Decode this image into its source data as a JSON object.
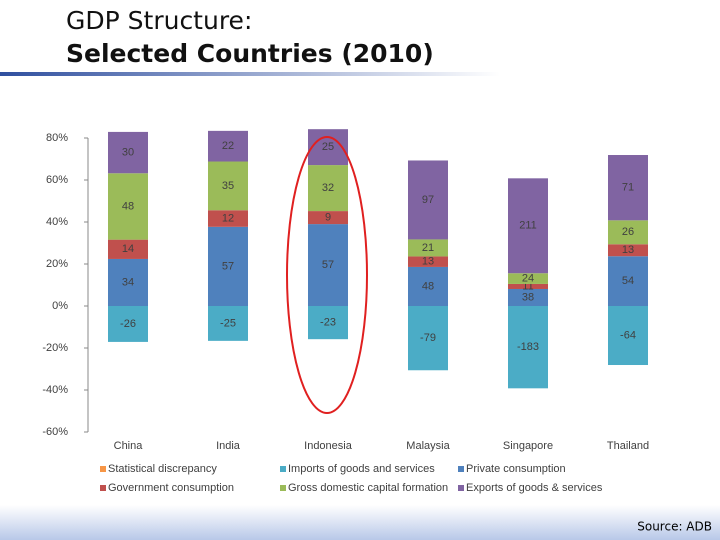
{
  "chart_data": {
    "type": "stacked_bar",
    "title": "GDP Structure:",
    "subtitle": "Selected Countries (2010)",
    "source": "Source: ADB",
    "categories": [
      "China",
      "India",
      "Indonesia",
      "Malaysia",
      "Singapore",
      "Thailand"
    ],
    "ylim": [
      -60,
      80
    ],
    "yticks": [
      {
        "value": 80,
        "label": "80%"
      },
      {
        "value": 60,
        "label": "60%"
      },
      {
        "value": 40,
        "label": "40%"
      },
      {
        "value": 20,
        "label": "20%"
      },
      {
        "value": 0,
        "label": "0%"
      },
      {
        "value": -20,
        "label": "-20%"
      },
      {
        "value": -40,
        "label": "-40%"
      },
      {
        "value": -60,
        "label": "-60%"
      }
    ],
    "series": [
      {
        "name": "Statistical discrepancy",
        "color": "#f79646",
        "values": [
          null,
          null,
          null,
          null,
          null,
          null
        ],
        "data_labels": [
          null,
          null,
          null,
          null,
          null,
          null
        ]
      },
      {
        "name": "Imports of goods and services",
        "color": "#4bacc6",
        "values": [
          -17.1,
          -16.6,
          -15.8,
          -30.6,
          -39.2,
          -28.1
        ],
        "data_labels": [
          -26,
          -25,
          -23,
          -79,
          -183,
          -64
        ]
      },
      {
        "name": "Private consumption",
        "color": "#4f81bd",
        "values": [
          22.4,
          37.7,
          39.0,
          18.6,
          8.1,
          23.7
        ],
        "data_labels": [
          34,
          57,
          57,
          48,
          38,
          54
        ]
      },
      {
        "name": "Government consumption",
        "color": "#c0504d",
        "values": [
          9.2,
          7.9,
          6.2,
          5.0,
          2.4,
          5.7
        ],
        "data_labels": [
          14,
          12,
          9,
          13,
          11,
          13
        ]
      },
      {
        "name": "Gross domestic capital formation",
        "color": "#9bbb59",
        "values": [
          31.6,
          23.2,
          21.9,
          8.1,
          5.1,
          11.4
        ],
        "data_labels": [
          48,
          35,
          32,
          21,
          24,
          26
        ]
      },
      {
        "name": "Exports of goods & services",
        "color": "#8064a2",
        "values": [
          19.7,
          14.6,
          17.1,
          37.6,
          45.2,
          31.1
        ],
        "data_labels": [
          30,
          22,
          25,
          97,
          211,
          71
        ]
      }
    ]
  }
}
